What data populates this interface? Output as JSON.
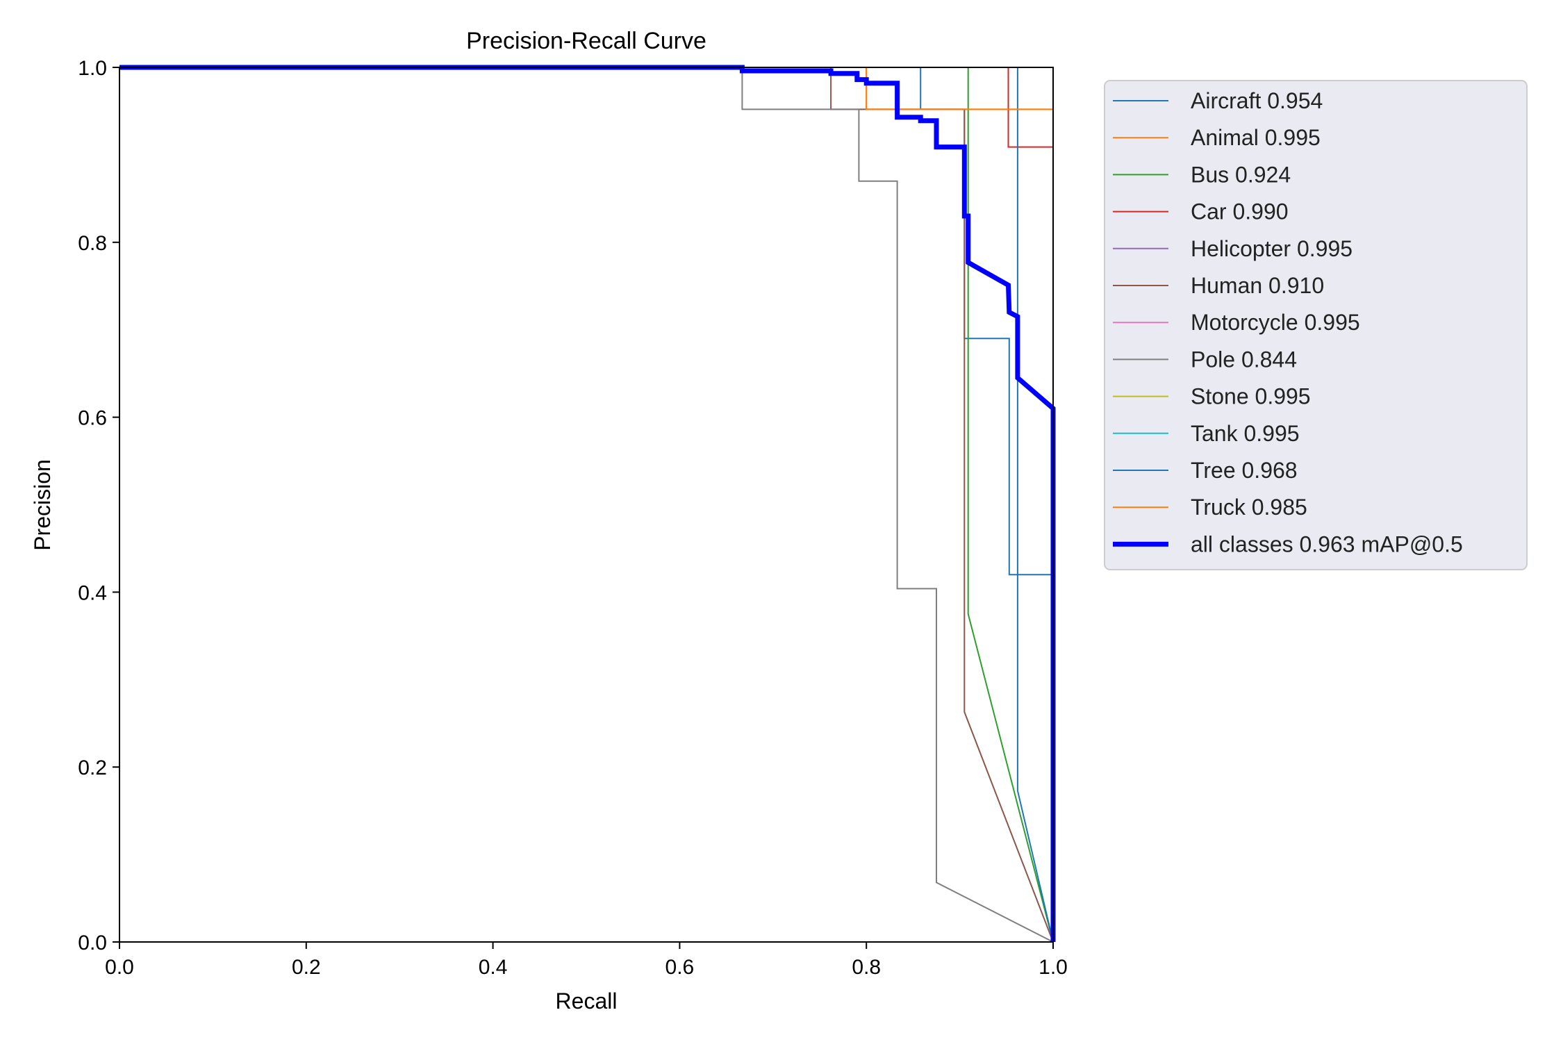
{
  "chart_data": {
    "type": "line",
    "title": "Precision-Recall Curve",
    "xlabel": "Recall",
    "ylabel": "Precision",
    "xlim": [
      0,
      1
    ],
    "ylim": [
      0,
      1
    ],
    "x_ticks": [
      "0.0",
      "0.2",
      "0.4",
      "0.6",
      "0.8",
      "1.0"
    ],
    "y_ticks": [
      "0.0",
      "0.2",
      "0.4",
      "0.6",
      "0.8",
      "1.0"
    ],
    "grid": false,
    "legend_position": "outside-right",
    "series": [
      {
        "name": "Aircraft 0.954",
        "color": "#1f77b4",
        "width": "thin",
        "points": [
          [
            0,
            1
          ],
          [
            0.858,
            1
          ],
          [
            0.858,
            0.952
          ],
          [
            0.905,
            0.952
          ],
          [
            0.905,
            0.69
          ],
          [
            0.953,
            0.69
          ],
          [
            0.953,
            0.42
          ],
          [
            1,
            0.42
          ],
          [
            1,
            0
          ]
        ]
      },
      {
        "name": "Animal 0.995",
        "color": "#ff7f0e",
        "width": "thin",
        "points": [
          [
            0,
            1
          ],
          [
            0.8,
            1
          ],
          [
            0.8,
            0.952
          ],
          [
            1,
            0.952
          ],
          [
            1,
            0
          ]
        ]
      },
      {
        "name": "Bus 0.924",
        "color": "#2ca02c",
        "width": "thin",
        "points": [
          [
            0,
            1
          ],
          [
            0.909,
            1
          ],
          [
            0.909,
            0.375
          ],
          [
            1,
            0
          ]
        ]
      },
      {
        "name": "Car 0.990",
        "color": "#d62728",
        "width": "thin",
        "points": [
          [
            0,
            1
          ],
          [
            0.952,
            1
          ],
          [
            0.952,
            0.909
          ],
          [
            1,
            0.909
          ],
          [
            1,
            0
          ]
        ]
      },
      {
        "name": "Helicopter 0.995",
        "color": "#9467bd",
        "width": "thin",
        "points": [
          [
            0,
            1
          ],
          [
            1,
            1
          ],
          [
            1,
            0
          ]
        ]
      },
      {
        "name": "Human 0.910",
        "color": "#8c564b",
        "width": "thin",
        "points": [
          [
            0,
            1
          ],
          [
            0.762,
            1
          ],
          [
            0.762,
            0.952
          ],
          [
            0.905,
            0.952
          ],
          [
            0.905,
            0.263
          ],
          [
            1,
            0
          ]
        ]
      },
      {
        "name": "Motorcycle 0.995",
        "color": "#e377c2",
        "width": "thin",
        "points": [
          [
            0,
            1
          ],
          [
            1,
            1
          ],
          [
            1,
            0
          ]
        ]
      },
      {
        "name": "Pole 0.844",
        "color": "#7f7f7f",
        "width": "thin",
        "points": [
          [
            0,
            1
          ],
          [
            0.667,
            1
          ],
          [
            0.667,
            0.952
          ],
          [
            0.792,
            0.952
          ],
          [
            0.792,
            0.87
          ],
          [
            0.833,
            0.87
          ],
          [
            0.833,
            0.404
          ],
          [
            0.875,
            0.404
          ],
          [
            0.875,
            0.068
          ],
          [
            1,
            0
          ]
        ]
      },
      {
        "name": "Stone 0.995",
        "color": "#bcbd22",
        "width": "thin",
        "points": [
          [
            0,
            1
          ],
          [
            1,
            1
          ],
          [
            1,
            0
          ]
        ]
      },
      {
        "name": "Tank 0.995",
        "color": "#17becf",
        "width": "thin",
        "points": [
          [
            0,
            1
          ],
          [
            1,
            1
          ],
          [
            1,
            0
          ]
        ]
      },
      {
        "name": "Tree 0.968",
        "color": "#1f77b4",
        "width": "thin",
        "points": [
          [
            0,
            1
          ],
          [
            0.962,
            1
          ],
          [
            0.962,
            0.173
          ],
          [
            1,
            0
          ]
        ]
      },
      {
        "name": "Truck 0.985",
        "color": "#ff7f0e",
        "width": "thin",
        "points": [
          [
            0,
            1
          ],
          [
            0.8,
            1
          ],
          [
            0.8,
            0.952
          ],
          [
            1,
            0.952
          ],
          [
            1,
            0
          ]
        ]
      },
      {
        "name": "all classes 0.963 mAP@0.5",
        "color": "#0000ff",
        "width": "thick",
        "points": [
          [
            0,
            1
          ],
          [
            0.667,
            1
          ],
          [
            0.667,
            0.996
          ],
          [
            0.762,
            0.996
          ],
          [
            0.762,
            0.993
          ],
          [
            0.79,
            0.993
          ],
          [
            0.79,
            0.986
          ],
          [
            0.8,
            0.986
          ],
          [
            0.8,
            0.982
          ],
          [
            0.833,
            0.982
          ],
          [
            0.833,
            0.943
          ],
          [
            0.858,
            0.943
          ],
          [
            0.858,
            0.939
          ],
          [
            0.875,
            0.939
          ],
          [
            0.875,
            0.909
          ],
          [
            0.905,
            0.909
          ],
          [
            0.905,
            0.83
          ],
          [
            0.909,
            0.83
          ],
          [
            0.909,
            0.777
          ],
          [
            0.952,
            0.751
          ],
          [
            0.953,
            0.72
          ],
          [
            0.962,
            0.715
          ],
          [
            0.962,
            0.645
          ],
          [
            1,
            0.61
          ],
          [
            1,
            0
          ]
        ]
      }
    ]
  }
}
